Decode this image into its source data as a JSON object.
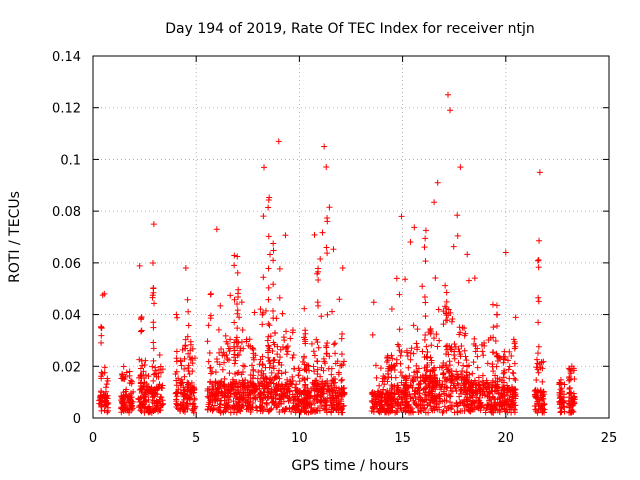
{
  "chart_data": {
    "type": "scatter",
    "title": "Day 194 of 2019, Rate Of TEC Index for receiver ntjn",
    "xlabel": "GPS time / hours",
    "ylabel": "ROTI / TECUs",
    "xlim": [
      0,
      25
    ],
    "ylim": [
      0,
      0.14
    ],
    "xticks": [
      "0",
      "5",
      "10",
      "15",
      "20",
      "25"
    ],
    "yticks": [
      "0",
      "0.02",
      "0.04",
      "0.06",
      "0.08",
      "0.1",
      "0.12",
      "0.14"
    ],
    "grid": true,
    "marker": "plus",
    "color": "#ff0000",
    "segments": [
      {
        "start": 0.3,
        "end": 0.75,
        "base": 0.008,
        "peak": 0.048
      },
      {
        "start": 1.35,
        "end": 1.95,
        "base": 0.007,
        "peak": 0.032
      },
      {
        "start": 2.2,
        "end": 3.4,
        "base": 0.01,
        "peak": 0.075
      },
      {
        "start": 4.0,
        "end": 4.95,
        "base": 0.012,
        "peak": 0.058
      },
      {
        "start": 5.55,
        "end": 8.2,
        "base": 0.012,
        "peak": 0.073
      },
      {
        "start": 8.2,
        "end": 9.7,
        "base": 0.014,
        "peak": 0.107
      },
      {
        "start": 9.7,
        "end": 10.6,
        "base": 0.009,
        "peak": 0.05
      },
      {
        "start": 10.6,
        "end": 11.7,
        "base": 0.012,
        "peak": 0.105
      },
      {
        "start": 11.7,
        "end": 12.2,
        "base": 0.01,
        "peak": 0.058
      },
      {
        "start": 13.5,
        "end": 14.7,
        "base": 0.008,
        "peak": 0.053
      },
      {
        "start": 14.7,
        "end": 15.4,
        "base": 0.011,
        "peak": 0.078
      },
      {
        "start": 15.4,
        "end": 16.9,
        "base": 0.014,
        "peak": 0.091
      },
      {
        "start": 16.9,
        "end": 17.5,
        "base": 0.017,
        "peak": 0.125
      },
      {
        "start": 17.5,
        "end": 18.2,
        "base": 0.014,
        "peak": 0.097
      },
      {
        "start": 18.2,
        "end": 19.6,
        "base": 0.012,
        "peak": 0.063
      },
      {
        "start": 19.6,
        "end": 20.5,
        "base": 0.01,
        "peak": 0.064
      },
      {
        "start": 21.4,
        "end": 21.9,
        "base": 0.009,
        "peak": 0.095
      },
      {
        "start": 22.6,
        "end": 22.85,
        "base": 0.006,
        "peak": 0.017
      },
      {
        "start": 23.05,
        "end": 23.35,
        "base": 0.008,
        "peak": 0.02
      }
    ],
    "notable_points": [
      {
        "x": 9.0,
        "y": 0.107
      },
      {
        "x": 11.2,
        "y": 0.105
      },
      {
        "x": 17.2,
        "y": 0.125
      },
      {
        "x": 17.3,
        "y": 0.119
      },
      {
        "x": 21.65,
        "y": 0.095
      },
      {
        "x": 16.7,
        "y": 0.091
      },
      {
        "x": 17.8,
        "y": 0.097
      },
      {
        "x": 14.95,
        "y": 0.078
      },
      {
        "x": 2.95,
        "y": 0.075
      },
      {
        "x": 6.0,
        "y": 0.073
      },
      {
        "x": 0.55,
        "y": 0.048
      },
      {
        "x": 4.5,
        "y": 0.058
      },
      {
        "x": 12.1,
        "y": 0.058
      },
      {
        "x": 20.0,
        "y": 0.064
      },
      {
        "x": 23.2,
        "y": 0.02
      }
    ]
  }
}
